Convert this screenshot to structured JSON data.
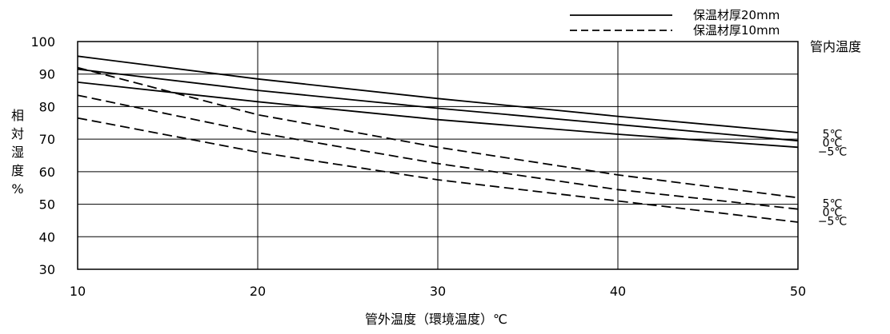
{
  "chart_data": {
    "type": "line",
    "title": "",
    "xlabel": "管外温度（環境温度）℃",
    "ylabel": "相対湿度%",
    "xlim": [
      10,
      50
    ],
    "ylim": [
      30,
      100
    ],
    "xticks": [
      10,
      20,
      30,
      40,
      50
    ],
    "yticks": [
      30,
      40,
      50,
      60,
      70,
      80,
      90,
      100
    ],
    "grid": true,
    "legend": {
      "position": "top-right",
      "entries": [
        {
          "label": "保温材厚20mm",
          "style": "solid"
        },
        {
          "label": "保温材厚10mm",
          "style": "dashed"
        }
      ]
    },
    "right_axis_title": "管内温度",
    "series": [
      {
        "group": "保温材厚20mm",
        "style": "solid",
        "end_label": "5℃",
        "x": [
          10,
          20,
          30,
          40,
          50
        ],
        "y": [
          95.5,
          88.5,
          82.5,
          77.0,
          72.0
        ]
      },
      {
        "group": "保温材厚20mm",
        "style": "solid",
        "end_label": "0℃",
        "x": [
          10,
          20,
          30,
          40,
          50
        ],
        "y": [
          91.5,
          85.0,
          79.5,
          74.5,
          69.5
        ]
      },
      {
        "group": "保温材厚20mm",
        "style": "solid",
        "end_label": "−5℃",
        "x": [
          10,
          20,
          30,
          40,
          50
        ],
        "y": [
          87.5,
          81.5,
          76.0,
          71.5,
          67.5
        ]
      },
      {
        "group": "保温材厚10mm",
        "style": "dashed",
        "end_label": "5℃",
        "x": [
          10,
          20,
          30,
          40,
          50
        ],
        "y": [
          92.0,
          77.5,
          67.5,
          59.0,
          52.0
        ]
      },
      {
        "group": "保温材厚10mm",
        "style": "dashed",
        "end_label": "0℃",
        "x": [
          10,
          20,
          30,
          40,
          50
        ],
        "y": [
          83.5,
          72.0,
          62.5,
          54.5,
          48.5
        ]
      },
      {
        "group": "保温材厚10mm",
        "style": "dashed",
        "end_label": "−5℃",
        "x": [
          10,
          20,
          30,
          40,
          50
        ],
        "y": [
          76.5,
          66.0,
          57.5,
          51.0,
          44.5
        ]
      }
    ],
    "colors": {
      "line": "#000000",
      "grid": "#000000",
      "background": "#ffffff"
    }
  }
}
